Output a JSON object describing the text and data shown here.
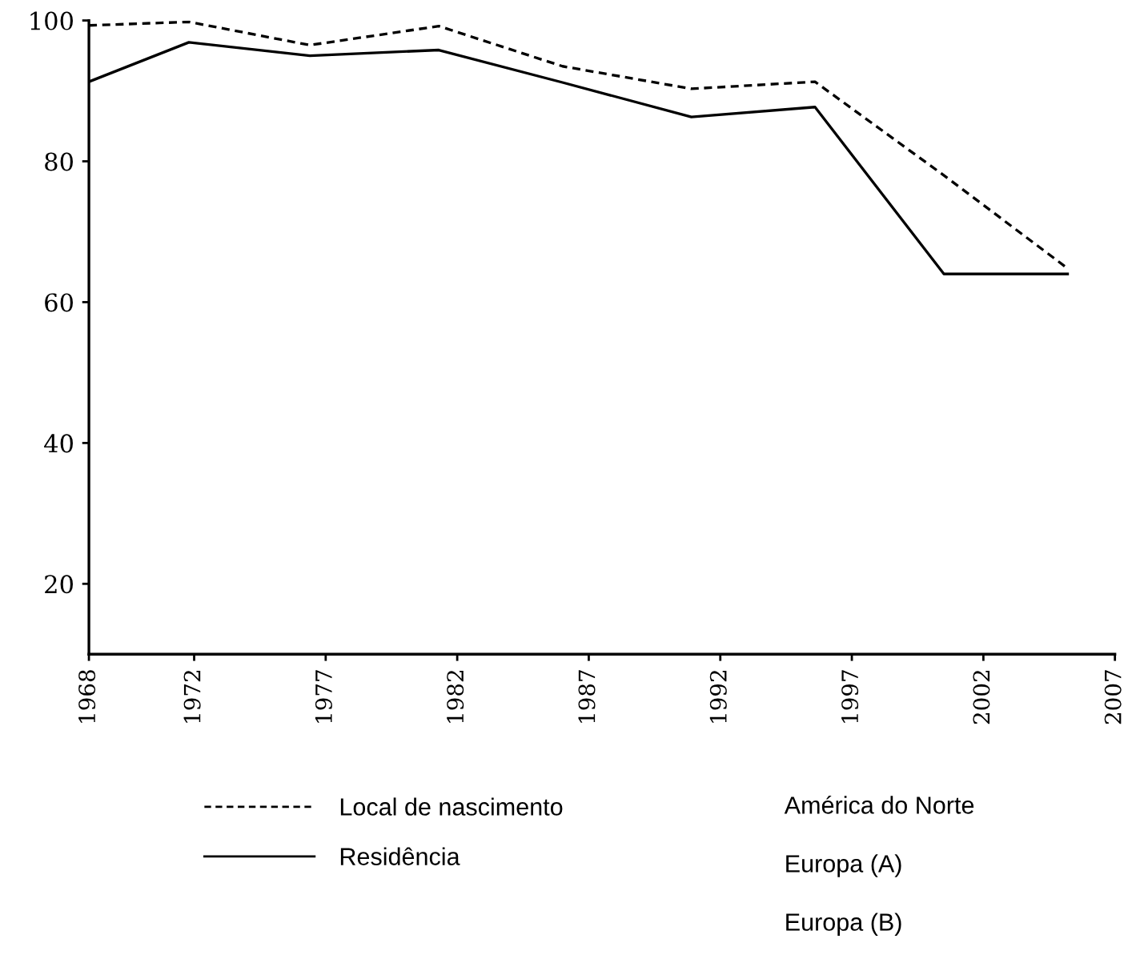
{
  "chart_data": {
    "type": "line",
    "x": [
      1968,
      1971.8,
      1976.4,
      1981.3,
      1986,
      1990.9,
      1995.6,
      2000.5,
      2005.2
    ],
    "series": [
      {
        "name": "Local de nascimento",
        "color": "#000000",
        "line_style": "dashed",
        "values": [
          99.3,
          99.8,
          96.5,
          99.2,
          93.5,
          90.3,
          91.3,
          78.0,
          64.8
        ]
      },
      {
        "name": "Residência",
        "color": "#000000",
        "line_style": "solid",
        "values": [
          91.3,
          96.9,
          95.0,
          95.8,
          91.2,
          86.3,
          87.7,
          64.0,
          64.0
        ]
      }
    ],
    "xlim": [
      1968,
      2007
    ],
    "xticks": [
      1968,
      1972,
      1977,
      1982,
      1987,
      1992,
      1997,
      2002,
      2007
    ],
    "ylim": [
      10,
      100
    ],
    "yticks": [
      20,
      40,
      60,
      80,
      100
    ],
    "grid": false,
    "legend": "bottom left",
    "marker": "none",
    "annotations": [
      "América do Norte",
      "Europa (A)",
      "Europa (B)"
    ]
  }
}
